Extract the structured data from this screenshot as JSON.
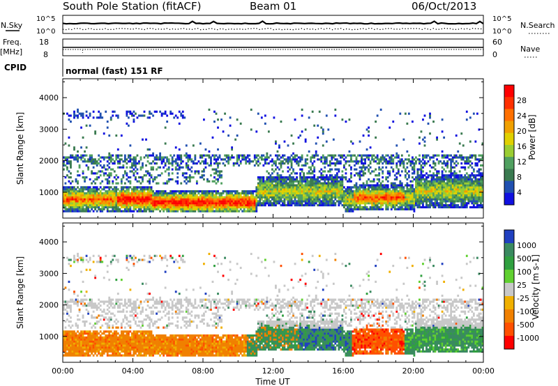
{
  "header": {
    "station": "South Pole Station (fitACF)",
    "beam": "Beam 01",
    "date": "06/Oct/2013"
  },
  "status_panels": {
    "nsky_label": "N.Sky",
    "nsky_ticks": [
      "10^5",
      "10^0"
    ],
    "nsearch_label": "N.Search",
    "nsearch_ticks": [
      "10^5",
      "10^0"
    ],
    "freq_label_line1": "Freq.",
    "freq_label_line2": "[MHz]",
    "freq_ticks": [
      "18",
      "8"
    ],
    "nave_label": "Nave",
    "nave_ticks": [
      "60",
      "0"
    ],
    "cpid_label": "CPID",
    "cpid_text": "normal (fast) 151 RF"
  },
  "chart_data": [
    {
      "type": "heatmap",
      "name": "power",
      "ylabel": "Slant Range [km]",
      "yticks": [
        1000,
        2000,
        3000,
        4000
      ],
      "ylim": [
        180,
        4600
      ],
      "xlabel": "",
      "xlim_hours": [
        0,
        24
      ],
      "colorbar": {
        "label": "Power [dB]",
        "ticks": [
          "4",
          "8",
          "12",
          "16",
          "20",
          "24",
          "28"
        ],
        "colors": [
          "#1010e0",
          "#2050b0",
          "#3a7a50",
          "#50a060",
          "#9acd32",
          "#e0d000",
          "#f0a000",
          "#ff7000",
          "#ff3000",
          "#ff0000"
        ]
      }
    },
    {
      "type": "heatmap",
      "name": "velocity",
      "ylabel": "Slant Range [km]",
      "yticks": [
        1000,
        2000,
        3000,
        4000
      ],
      "ylim": [
        180,
        4600
      ],
      "xlabel": "Time UT",
      "xticks": [
        "00:00",
        "04:00",
        "08:00",
        "12:00",
        "16:00",
        "20:00",
        "00:00"
      ],
      "xlim_hours": [
        0,
        24
      ],
      "colorbar": {
        "label": "Velocity [m s-1]",
        "ticks": [
          "1000",
          "500",
          "100",
          "25",
          "-25",
          "-100",
          "-500",
          "-1000"
        ],
        "colors": [
          "#2040c0",
          "#3a8a60",
          "#30a040",
          "#60d030",
          "#c8c8c8",
          "#f0b000",
          "#f08000",
          "#ff5000",
          "#ff0000"
        ]
      }
    }
  ],
  "colors": {
    "axis": "#000000",
    "ground_scatter": "#c0c0c0"
  }
}
